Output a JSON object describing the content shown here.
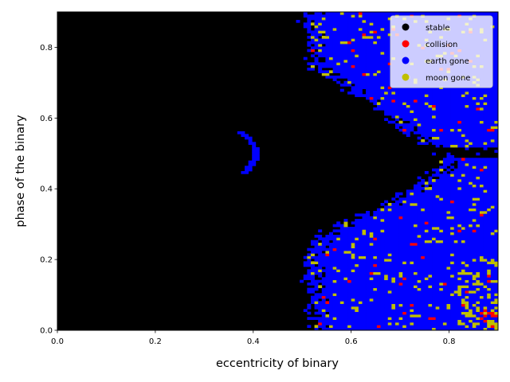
{
  "chart_data": {
    "type": "heatmap",
    "title": "",
    "xlabel": "eccentricity of binary",
    "ylabel": "phase of the binary",
    "xlim": [
      0.0,
      0.9
    ],
    "ylim": [
      0.0,
      0.9
    ],
    "x_ticks": [
      0.0,
      0.2,
      0.4,
      0.6,
      0.8
    ],
    "x_tick_labels": [
      "0.0",
      "0.2",
      "0.4",
      "0.6",
      "0.8"
    ],
    "y_ticks": [
      0.0,
      0.2,
      0.4,
      0.6,
      0.8
    ],
    "y_tick_labels": [
      "0.0",
      "0.2",
      "0.4",
      "0.6",
      "0.8"
    ],
    "grid": false,
    "legend_position": "top-right",
    "categories": [
      {
        "label": "stable",
        "color": "#000000"
      },
      {
        "label": "collision",
        "color": "#ff0000"
      },
      {
        "label": "earth gone",
        "color": "#0000ff"
      },
      {
        "label": "moon gone",
        "color": "#bfbf00"
      }
    ],
    "grid_resolution": 0.0075,
    "stable_boundary": {
      "phase": [
        0.0,
        0.05,
        0.1,
        0.15,
        0.2,
        0.25,
        0.27,
        0.3,
        0.35,
        0.4,
        0.45,
        0.47,
        0.5,
        0.55,
        0.6,
        0.65,
        0.7,
        0.75,
        0.8,
        0.85,
        0.9
      ],
      "eccentricity": [
        0.52,
        0.515,
        0.51,
        0.505,
        0.505,
        0.52,
        0.53,
        0.575,
        0.66,
        0.72,
        0.77,
        0.785,
        0.77,
        0.72,
        0.67,
        0.62,
        0.565,
        0.51,
        0.51,
        0.505,
        0.505
      ]
    },
    "stable_band": {
      "phase_min": 0.49,
      "phase_max": 0.515,
      "eccentricity_min": 0.76
    },
    "stable_arc": {
      "eccentricity_center": 0.405,
      "phase_center": 0.5,
      "phase_half_width": 0.06,
      "eccentricity_amplitude": 0.03
    },
    "moon_gone_fraction": 0.07,
    "collision_fraction": 0.015,
    "moon_gone_dense_region": {
      "eccentricity_min": 0.82,
      "phase_max": 0.2,
      "fraction": 0.3
    },
    "collision_dense_region": {
      "eccentricity_min": 0.86,
      "phase_max": 0.06,
      "fraction": 0.25
    }
  }
}
